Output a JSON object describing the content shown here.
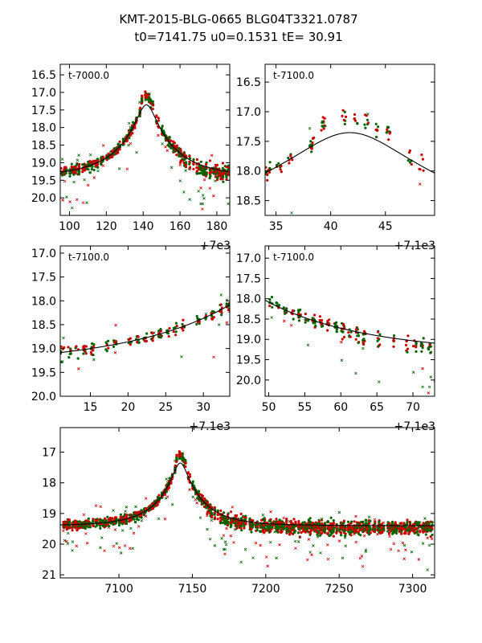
{
  "figure": {
    "title_line1": "KMT-2015-BLG-0665 BLG04T3321.0787",
    "title_line2": "t0=7141.75 u0=0.1531 tE=  30.91",
    "model": {
      "t0": 7141.75,
      "u0": 0.1531,
      "tE": 30.91,
      "mag_base": 19.4
    }
  },
  "chart_data": [
    {
      "type": "scatter",
      "panel_label": "t-7000.0",
      "xlim": [
        7095,
        7187
      ],
      "ylim": [
        20.5,
        16.2
      ],
      "xticks": [
        7100,
        7120,
        7140,
        7160,
        7180
      ],
      "xtick_labels": [
        "100",
        "120",
        "140",
        "160",
        "180"
      ],
      "yticks": [
        16.5,
        17.0,
        17.5,
        18.0,
        18.5,
        19.0,
        19.5,
        20.0
      ],
      "ytick_labels": [
        "16.5",
        "17.0",
        "17.5",
        "18.0",
        "18.5",
        "19.0",
        "19.5",
        "20.0"
      ],
      "x_offset_label": "+7e3",
      "series": [
        {
          "name": "KMTNet-red",
          "color": "#cc0000"
        },
        {
          "name": "KMTNet-green",
          "color": "#006400"
        },
        {
          "name": "model",
          "color": "#000000"
        }
      ]
    },
    {
      "type": "scatter",
      "panel_label": "t-7100.0",
      "xlim": [
        7134,
        7149.5
      ],
      "ylim": [
        18.75,
        16.2
      ],
      "xticks": [
        7135,
        7140,
        7145
      ],
      "xtick_labels": [
        "35",
        "40",
        "45"
      ],
      "yticks": [
        16.5,
        17.0,
        17.5,
        18.0,
        18.5
      ],
      "ytick_labels": [
        "16.5",
        "17.0",
        "17.5",
        "18.0",
        "18.5"
      ],
      "x_offset_label": "+7.1e3",
      "series": [
        {
          "name": "KMTNet-red",
          "color": "#cc0000"
        },
        {
          "name": "KMTNet-green",
          "color": "#006400"
        },
        {
          "name": "model",
          "color": "#000000"
        }
      ]
    },
    {
      "type": "scatter",
      "panel_label": "t-7100.0",
      "xlim": [
        7111,
        7133.5
      ],
      "ylim": [
        20.0,
        16.85
      ],
      "xticks": [
        7115,
        7120,
        7125,
        7130
      ],
      "xtick_labels": [
        "15",
        "20",
        "25",
        "30"
      ],
      "yticks": [
        17.0,
        17.5,
        18.0,
        18.5,
        19.0,
        19.5,
        20.0
      ],
      "ytick_labels": [
        "17.0",
        "17.5",
        "18.0",
        "18.5",
        "19.0",
        "19.5",
        "20.0"
      ],
      "x_offset_label": "+7.1e3",
      "series": [
        {
          "name": "KMTNet-red",
          "color": "#cc0000"
        },
        {
          "name": "KMTNet-green",
          "color": "#006400"
        },
        {
          "name": "model",
          "color": "#000000"
        }
      ]
    },
    {
      "type": "scatter",
      "panel_label": "t-7100.0",
      "xlim": [
        7149.5,
        7173
      ],
      "ylim": [
        20.4,
        16.7
      ],
      "xticks": [
        7150,
        7155,
        7160,
        7165,
        7170
      ],
      "xtick_labels": [
        "50",
        "55",
        "60",
        "65",
        "70"
      ],
      "yticks": [
        17.0,
        17.5,
        18.0,
        18.5,
        19.0,
        19.5,
        20.0
      ],
      "ytick_labels": [
        "17.0",
        "17.5",
        "18.0",
        "18.5",
        "19.0",
        "19.5",
        "20.0"
      ],
      "x_offset_label": "+7.1e3",
      "series": [
        {
          "name": "KMTNet-red",
          "color": "#cc0000"
        },
        {
          "name": "KMTNet-green",
          "color": "#006400"
        },
        {
          "name": "model",
          "color": "#000000"
        }
      ]
    },
    {
      "type": "scatter",
      "panel_label": "",
      "xlim": [
        7060,
        7315
      ],
      "ylim": [
        21.1,
        16.2
      ],
      "xticks": [
        7100,
        7150,
        7200,
        7250,
        7300
      ],
      "xtick_labels": [
        "7100",
        "7150",
        "7200",
        "7250",
        "7300"
      ],
      "yticks": [
        17,
        18,
        19,
        20,
        21
      ],
      "ytick_labels": [
        "17",
        "18",
        "19",
        "20",
        "21"
      ],
      "x_offset_label": "",
      "series": [
        {
          "name": "KMTNet-red",
          "color": "#cc0000"
        },
        {
          "name": "KMTNet-green",
          "color": "#006400"
        },
        {
          "name": "model",
          "color": "#000000"
        }
      ]
    }
  ]
}
